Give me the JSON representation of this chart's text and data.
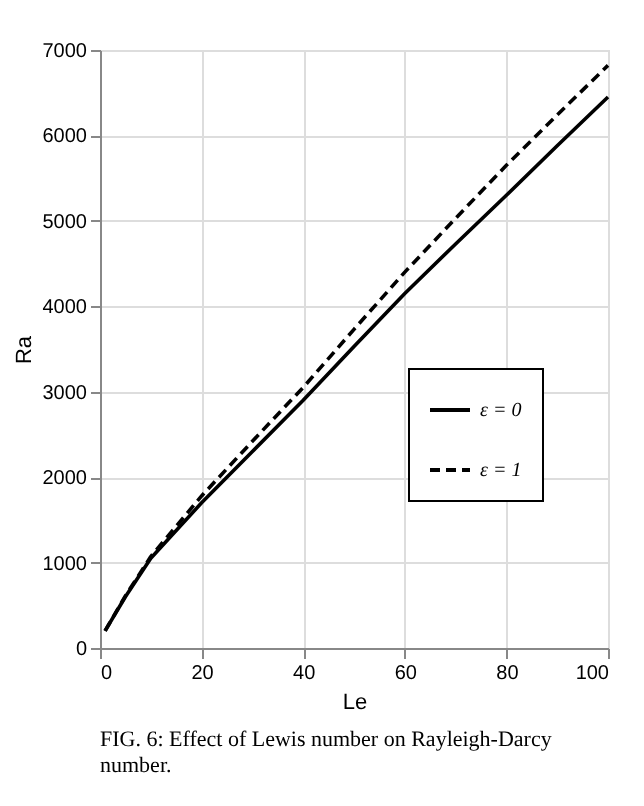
{
  "chart_data": {
    "type": "line",
    "xlabel": "Le",
    "ylabel": "Ra",
    "xlim": [
      0,
      100
    ],
    "ylim": [
      0,
      7000
    ],
    "xticks": [
      0,
      20,
      40,
      60,
      80,
      100
    ],
    "yticks": [
      0,
      1000,
      2000,
      3000,
      4000,
      5000,
      6000,
      7000
    ],
    "grid": true,
    "legend": "bottom right",
    "x": [
      1,
      5,
      10,
      20,
      30,
      40,
      50,
      60,
      70,
      80,
      90,
      100
    ],
    "series": [
      {
        "name": "ε = 0",
        "color": "#000000",
        "line_style": "solid",
        "values": [
          200,
          600,
          1050,
          1700,
          2300,
          2900,
          3530,
          4150,
          4730,
          5300,
          5880,
          6450
        ]
      },
      {
        "name": "ε = 1",
        "color": "#000000",
        "line_style": "dashed",
        "values": [
          200,
          610,
          1070,
          1780,
          2420,
          3050,
          3730,
          4400,
          5030,
          5650,
          6240,
          6820
        ]
      }
    ],
    "annotations": [
      "FIG. 6: Effect of Lewis number on Rayleigh-Darcy number."
    ]
  }
}
